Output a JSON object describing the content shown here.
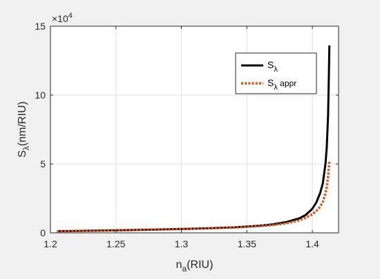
{
  "colors": {
    "figure_bg": "#f0f0f0",
    "axes_bg": "#ffffff",
    "grid": "#dfdfdf",
    "axis": "#262626"
  },
  "chart_data": {
    "type": "line",
    "title": "",
    "xlabel": {
      "main": "n",
      "sub": "a",
      "rest": "(RIU)"
    },
    "ylabel": {
      "main": "S",
      "sub": "λ",
      "rest": "(nm/RIU)"
    },
    "xlim": [
      1.2,
      1.42
    ],
    "ylim": [
      0,
      150000
    ],
    "y_multiplier": {
      "base": "×10",
      "exponent": "4"
    },
    "x_ticks": [
      1.2,
      1.25,
      1.3,
      1.35,
      1.4
    ],
    "x_tick_labels": [
      "1.2",
      "1.25",
      "1.3",
      "1.35",
      "1.4"
    ],
    "y_ticks": [
      0,
      50000,
      100000,
      150000
    ],
    "y_tick_labels": [
      "0",
      "5",
      "10",
      "15"
    ],
    "grid": true,
    "legend_position": "top-right",
    "series": [
      {
        "name": {
          "main": "S",
          "sub": "λ",
          "rest": ""
        },
        "color": "#000000",
        "style": "solid",
        "x": [
          1.205,
          1.22,
          1.24,
          1.26,
          1.28,
          1.3,
          1.32,
          1.34,
          1.36,
          1.37,
          1.38,
          1.39,
          1.395,
          1.4,
          1.403,
          1.406,
          1.408,
          1.41,
          1.411,
          1.412,
          1.4125,
          1.413
        ],
        "y": [
          1200,
          1400,
          1700,
          2000,
          2400,
          2800,
          3300,
          4000,
          5200,
          6200,
          7800,
          10500,
          13000,
          17500,
          22000,
          29000,
          36000,
          50000,
          62000,
          85000,
          108000,
          136000
        ]
      },
      {
        "name": {
          "main": "S",
          "sub": "λ",
          "rest": " appr"
        },
        "color": "#d95319",
        "style": "dotted",
        "x": [
          1.205,
          1.22,
          1.24,
          1.26,
          1.28,
          1.3,
          1.32,
          1.34,
          1.36,
          1.37,
          1.38,
          1.39,
          1.395,
          1.4,
          1.403,
          1.406,
          1.408,
          1.41,
          1.411,
          1.412,
          1.413
        ],
        "y": [
          1200,
          1400,
          1700,
          2000,
          2400,
          2800,
          3300,
          3900,
          4900,
          5700,
          6900,
          9000,
          11000,
          13500,
          15800,
          19000,
          22500,
          28500,
          33000,
          41000,
          52000
        ]
      }
    ]
  }
}
